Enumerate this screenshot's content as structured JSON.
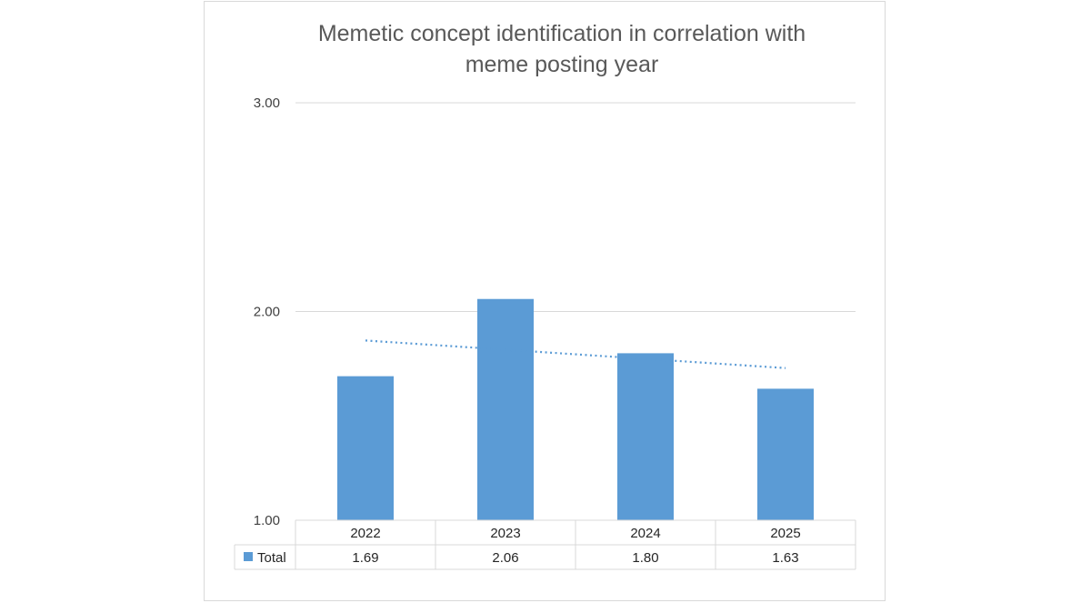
{
  "chart_data": {
    "type": "bar",
    "title_lines": [
      "Memetic concept identification in correlation with",
      "meme posting year"
    ],
    "categories": [
      "2022",
      "2023",
      "2024",
      "2025"
    ],
    "series": [
      {
        "name": "Total",
        "values": [
          1.69,
          2.06,
          1.8,
          1.63
        ],
        "value_labels": [
          "1.69",
          "2.06",
          "1.80",
          "1.63"
        ]
      }
    ],
    "trendline": {
      "type": "linear",
      "style": "dotted"
    },
    "y_ticks": [
      "1.00",
      "2.00",
      "3.00"
    ],
    "ylim": [
      1.0,
      3.0
    ],
    "grid": true,
    "data_table": true,
    "legend_position": "data-table",
    "colors": {
      "bar": "#5b9bd5",
      "trendline": "#5b9bd5",
      "grid": "#d9d9d9",
      "title": "#595959"
    }
  }
}
